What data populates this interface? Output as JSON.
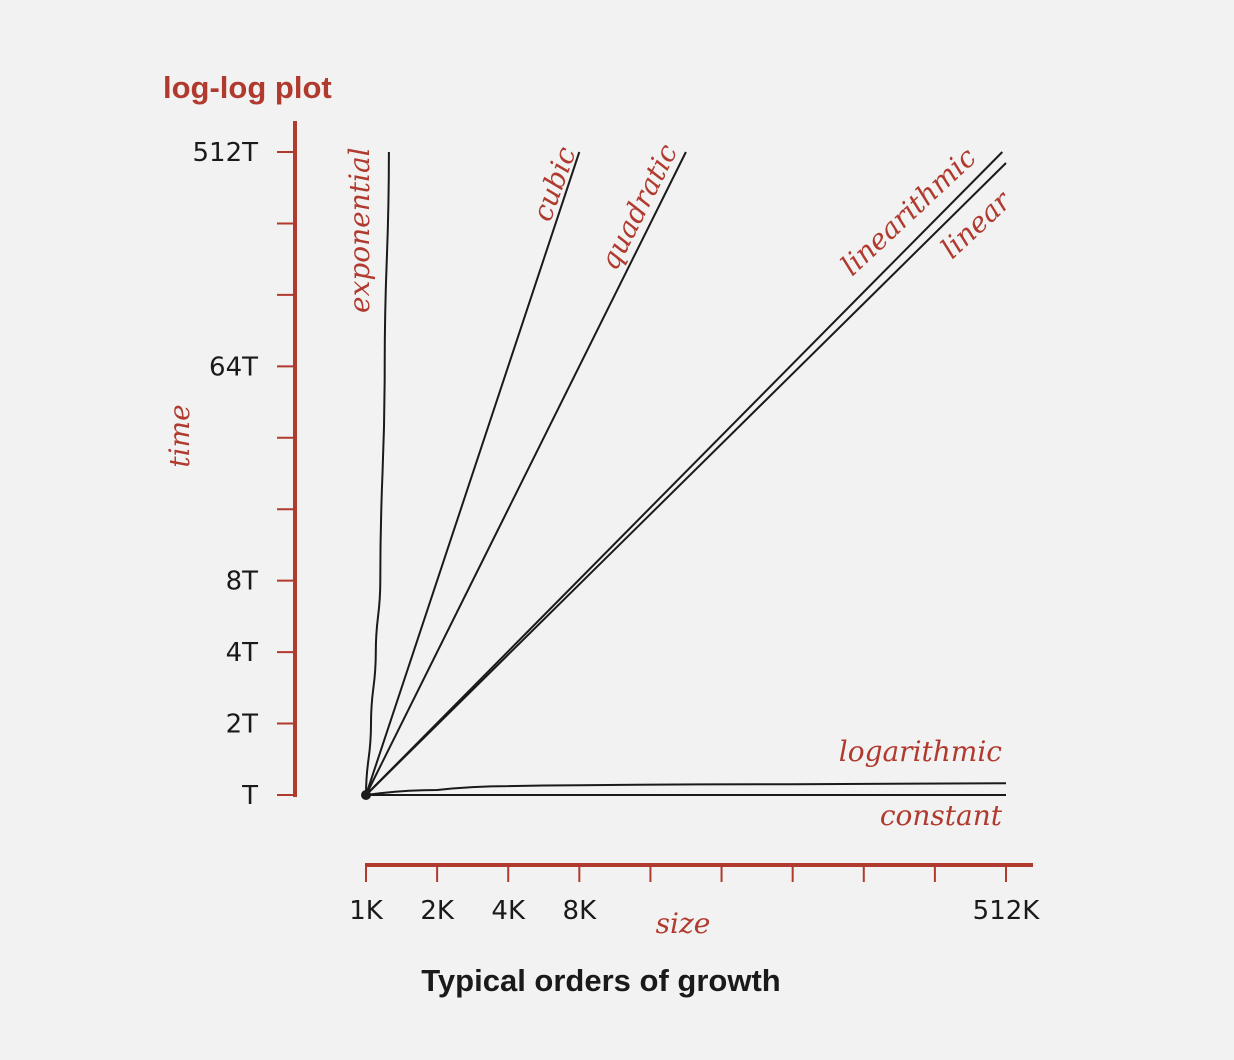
{
  "chart_data": {
    "type": "line",
    "title": "log-log plot",
    "caption": "Typical orders of growth",
    "xlabel": "size",
    "ylabel": "time",
    "x_scale": "log2",
    "y_scale": "log2",
    "x_range_K": [
      1,
      512
    ],
    "y_range_T": [
      1,
      512
    ],
    "x_ticks_K": [
      1,
      2,
      4,
      8,
      16,
      32,
      64,
      128,
      256,
      512
    ],
    "x_tick_labels": [
      "1K",
      "2K",
      "4K",
      "8K",
      "",
      "",
      "",
      "",
      "",
      "512K"
    ],
    "y_ticks_T": [
      1,
      2,
      4,
      8,
      16,
      32,
      64,
      128,
      256,
      512
    ],
    "y_tick_labels": [
      "T",
      "2T",
      "4T",
      "8T",
      "",
      "",
      "64T",
      "",
      "",
      "512T"
    ],
    "series": [
      {
        "name": "exponential",
        "x_K": [
          1,
          1.05,
          1.1,
          1.15,
          1.2,
          1.25
        ],
        "y_T": [
          1,
          2,
          4,
          8,
          64,
          512
        ]
      },
      {
        "name": "cubic",
        "x_K": [
          1,
          8
        ],
        "y_T": [
          1,
          512
        ]
      },
      {
        "name": "quadratic",
        "x_K": [
          1,
          22.6
        ],
        "y_T": [
          1,
          512
        ]
      },
      {
        "name": "linearithmic",
        "x_K": [
          1,
          494
        ],
        "y_T": [
          1,
          512
        ]
      },
      {
        "name": "linear",
        "x_K": [
          1,
          512
        ],
        "y_T": [
          1,
          460
        ]
      },
      {
        "name": "logarithmic",
        "x_K": [
          1,
          2,
          4,
          8,
          64,
          512
        ],
        "y_T": [
          1,
          1.05,
          1.09,
          1.1,
          1.11,
          1.12
        ]
      },
      {
        "name": "constant",
        "x_K": [
          1,
          512
        ],
        "y_T": [
          1,
          1
        ]
      }
    ]
  }
}
